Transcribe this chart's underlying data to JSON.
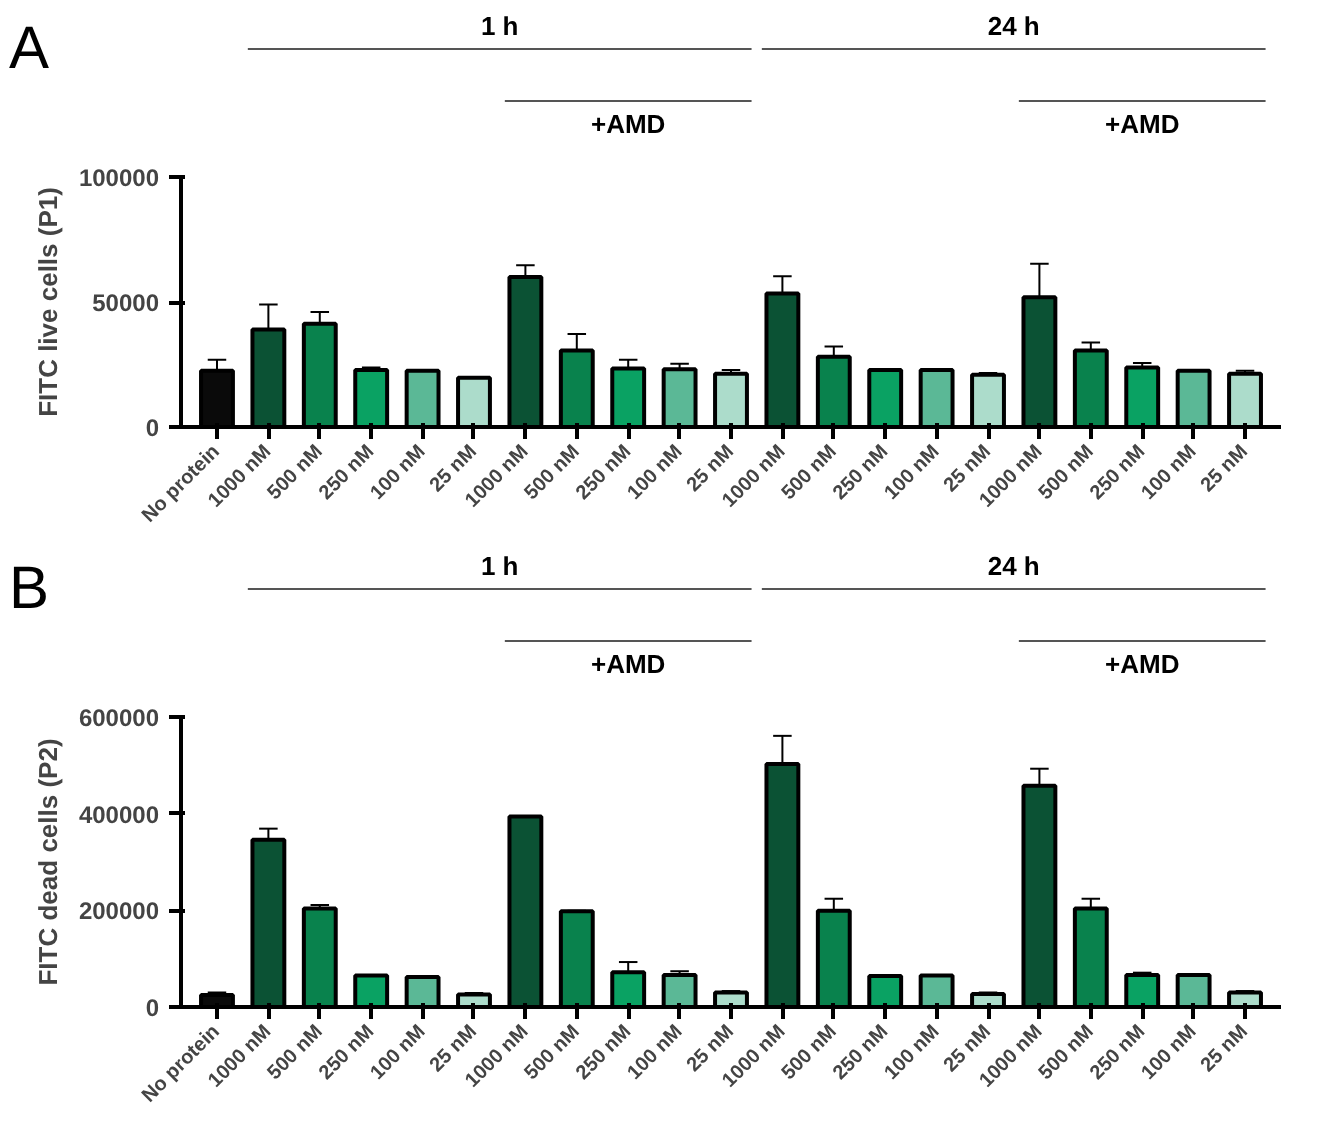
{
  "chart_data": [
    {
      "type": "bar",
      "title": "A",
      "ylabel": "FITC live cells (P1)",
      "categories": [
        "No protein",
        "1000 nM",
        "500 nM",
        "250 nM",
        "100 nM",
        "25 nM",
        "1000 nM",
        "500 nM",
        "250 nM",
        "100 nM",
        "25 nM",
        "1000 nM",
        "500 nM",
        "250 nM",
        "100 nM",
        "25 nM",
        "1000 nM",
        "500 nM",
        "250 nM",
        "100 nM",
        "25 nM"
      ],
      "values": [
        22500,
        39000,
        41300,
        22800,
        22500,
        19700,
        60000,
        30600,
        23400,
        23100,
        21300,
        53400,
        28100,
        22800,
        22800,
        20900,
        51900,
        30600,
        23800,
        22500,
        21300
      ],
      "errors": [
        4400,
        10000,
        4700,
        1000,
        300,
        300,
        4700,
        6600,
        3500,
        2200,
        1500,
        6900,
        4100,
        300,
        300,
        700,
        13400,
        3200,
        1800,
        null,
        1200
      ],
      "colors": [
        "#0a0a0a",
        "#0b5234",
        "#09824d",
        "#0aa263",
        "#5bb896",
        "#acdccb",
        "#0b5234",
        "#09824d",
        "#0aa263",
        "#5bb896",
        "#acdccb",
        "#0b5234",
        "#09824d",
        "#0aa263",
        "#5bb896",
        "#acdccb",
        "#0b5234",
        "#09824d",
        "#0aa263",
        "#5bb896",
        "#acdccb"
      ],
      "ylim": [
        0,
        100000
      ],
      "yticks": [
        0,
        50000,
        100000
      ],
      "grid": false,
      "annotations": [
        "1 h",
        "+AMD",
        "24 h",
        "+AMD"
      ]
    },
    {
      "type": "bar",
      "title": "B",
      "ylabel": "FITC dead cells (P2)",
      "categories": [
        "No protein",
        "1000 nM",
        "500 nM",
        "250 nM",
        "100 nM",
        "25 nM",
        "1000 nM",
        "500 nM",
        "250 nM",
        "100 nM",
        "25 nM",
        "1000 nM",
        "500 nM",
        "250 nM",
        "100 nM",
        "25 nM",
        "1000 nM",
        "500 nM",
        "250 nM",
        "100 nM",
        "25 nM"
      ],
      "values": [
        25000,
        346000,
        204000,
        65000,
        62000,
        26000,
        394000,
        198000,
        72000,
        66000,
        30000,
        503000,
        199000,
        64000,
        65000,
        27000,
        458000,
        204000,
        66000,
        66000,
        30000
      ],
      "errors": [
        5000,
        23000,
        7000,
        null,
        1000,
        3000,
        1000,
        1000,
        21000,
        8000,
        3000,
        58000,
        25000,
        1000,
        1000,
        3000,
        35000,
        20000,
        5000,
        1000,
        3000
      ],
      "colors": [
        "#0a0a0a",
        "#0b5234",
        "#09824d",
        "#0aa263",
        "#5bb896",
        "#acdccb",
        "#0b5234",
        "#09824d",
        "#0aa263",
        "#5bb896",
        "#acdccb",
        "#0b5234",
        "#09824d",
        "#0aa263",
        "#5bb896",
        "#acdccb",
        "#0b5234",
        "#09824d",
        "#0aa263",
        "#5bb896",
        "#acdccb"
      ],
      "ylim": [
        0,
        600000
      ],
      "yticks": [
        0,
        200000,
        400000,
        600000
      ],
      "grid": false,
      "annotations": [
        "1 h",
        "+AMD",
        "24 h",
        "+AMD"
      ]
    }
  ]
}
